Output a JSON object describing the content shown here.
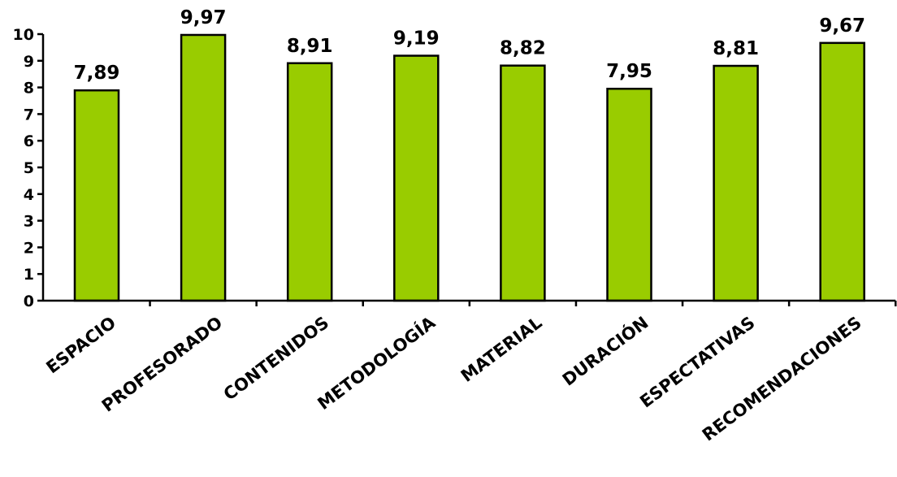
{
  "chart_data": {
    "type": "bar",
    "categories": [
      "ESPACIO",
      "PROFESORADO",
      "CONTENIDOS",
      "METODOLOGÍA",
      "MATERIAL",
      "DURACIÓN",
      "ESPECTATIVAS",
      "RECOMENDACIONES"
    ],
    "values": [
      7.89,
      9.97,
      8.91,
      9.19,
      8.82,
      7.95,
      8.81,
      9.67
    ],
    "value_labels": [
      "7,89",
      "9,97",
      "8,91",
      "9,19",
      "8,82",
      "7,95",
      "8,81",
      "9,67"
    ],
    "y_ticks": [
      "0",
      "1",
      "2",
      "3",
      "4",
      "5",
      "6",
      "7",
      "8",
      "9",
      "10"
    ],
    "ylim": [
      0,
      10
    ],
    "grid": false,
    "title": "",
    "xlabel": "",
    "ylabel": "",
    "colors": {
      "bar_fill": "#99cc00",
      "bar_stroke": "#000000",
      "axis": "#000000"
    }
  }
}
